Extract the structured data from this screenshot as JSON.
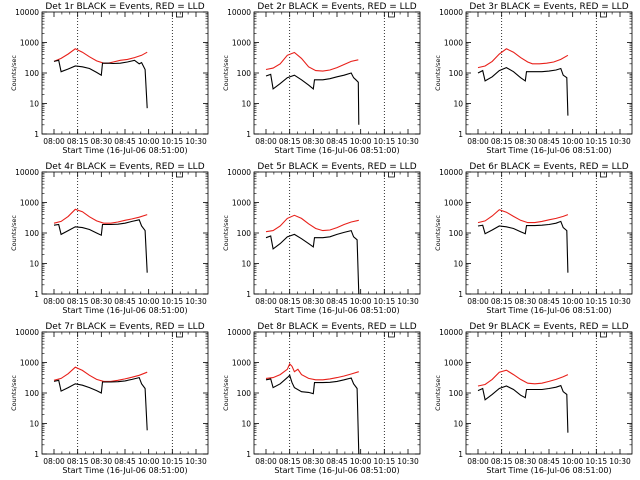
{
  "figure": {
    "colors": {
      "events": "#000000",
      "lld": "#e8201a",
      "background": "#ffffff"
    }
  },
  "chart_data": [
    {
      "type": "line",
      "title": "Det 1r BLACK = Events, RED = LLD",
      "xlabel": "Start Time (16-Jul-06 08:51:00)",
      "ylabel": "Counts/sec",
      "xticks": [
        "08:00",
        "08:15",
        "08:30",
        "08:45",
        "10:00",
        "10:15",
        "10:30"
      ],
      "yticks": [
        "1",
        "10",
        "100",
        "1000",
        "10000"
      ],
      "yscale": "log",
      "ylim": [
        1,
        10000
      ],
      "vlines": [
        1,
        5
      ],
      "marker_at": 5.3,
      "series": [
        {
          "name": "RED = LLD",
          "x": [
            0,
            0.3,
            0.6,
            0.9,
            1.2,
            1.5,
            1.8,
            2.1,
            2.3,
            2.5,
            2.8,
            3.1,
            3.4,
            3.7,
            3.94
          ],
          "y": [
            240,
            300,
            420,
            620,
            480,
            340,
            250,
            210,
            210,
            230,
            260,
            280,
            320,
            380,
            480
          ]
        },
        {
          "name": "BLACK = Events",
          "x": [
            0,
            0.2,
            0.3,
            0.6,
            0.9,
            1.2,
            1.5,
            1.8,
            2.0,
            2.05,
            2.3,
            2.5,
            2.8,
            3.1,
            3.4,
            3.6,
            3.7,
            3.85,
            3.94
          ],
          "y": [
            240,
            260,
            110,
            135,
            170,
            160,
            140,
            105,
            85,
            210,
            210,
            205,
            210,
            230,
            260,
            200,
            220,
            130,
            7
          ]
        }
      ]
    },
    {
      "type": "line",
      "title": "Det 2r BLACK = Events, RED = LLD",
      "xlabel": "Start Time (16-Jul-06 08:51:00)",
      "ylabel": "Counts/sec",
      "xticks": [
        "08:00",
        "08:15",
        "08:30",
        "08:45",
        "10:00",
        "10:15",
        "10:30"
      ],
      "yticks": [
        "1",
        "10",
        "100",
        "1000",
        "10000"
      ],
      "yscale": "log",
      "ylim": [
        1,
        10000
      ],
      "vlines": [
        1,
        5
      ],
      "marker_at": 5.3,
      "series": [
        {
          "name": "RED = LLD",
          "x": [
            0,
            0.3,
            0.6,
            0.9,
            1.2,
            1.5,
            1.8,
            2.1,
            2.4,
            2.7,
            3.0,
            3.3,
            3.6,
            3.9
          ],
          "y": [
            130,
            145,
            200,
            380,
            470,
            300,
            160,
            120,
            115,
            125,
            150,
            190,
            240,
            270
          ]
        },
        {
          "name": "BLACK = Events",
          "x": [
            0,
            0.2,
            0.3,
            0.6,
            0.9,
            1.2,
            1.5,
            1.8,
            2.0,
            2.05,
            2.4,
            2.7,
            3.0,
            3.3,
            3.6,
            3.7,
            3.8,
            3.9,
            3.92
          ],
          "y": [
            80,
            90,
            30,
            45,
            70,
            85,
            60,
            40,
            30,
            60,
            60,
            65,
            75,
            85,
            100,
            70,
            60,
            50,
            2
          ]
        }
      ]
    },
    {
      "type": "line",
      "title": "Det 3r BLACK = Events, RED = LLD",
      "xlabel": "Start Time (16-Jul-06 08:51:00)",
      "ylabel": "Counts/sec",
      "xticks": [
        "08:00",
        "08:15",
        "08:30",
        "08:45",
        "10:00",
        "10:15",
        "10:30"
      ],
      "yticks": [
        "1",
        "10",
        "100",
        "1000",
        "10000"
      ],
      "yscale": "log",
      "ylim": [
        1,
        10000
      ],
      "vlines": [
        1,
        5
      ],
      "marker_at": 5.3,
      "series": [
        {
          "name": "RED = LLD",
          "x": [
            0,
            0.3,
            0.6,
            0.9,
            1.2,
            1.5,
            1.8,
            2.1,
            2.3,
            2.6,
            2.9,
            3.2,
            3.5,
            3.8
          ],
          "y": [
            150,
            170,
            240,
            420,
            620,
            480,
            320,
            230,
            200,
            200,
            210,
            230,
            280,
            380
          ]
        },
        {
          "name": "BLACK = Events",
          "x": [
            0,
            0.2,
            0.3,
            0.6,
            0.9,
            1.2,
            1.5,
            1.8,
            2.0,
            2.05,
            2.4,
            2.7,
            3.0,
            3.3,
            3.5,
            3.6,
            3.75,
            3.8
          ],
          "y": [
            100,
            120,
            55,
            75,
            120,
            150,
            110,
            70,
            55,
            110,
            110,
            110,
            115,
            125,
            140,
            85,
            70,
            4
          ]
        }
      ]
    },
    {
      "type": "line",
      "title": "Det 4r BLACK = Events, RED = LLD",
      "xlabel": "Start Time (16-Jul-06 08:51:00)",
      "ylabel": "Counts/sec",
      "xticks": [
        "08:00",
        "08:15",
        "08:30",
        "08:45",
        "10:00",
        "10:15",
        "10:30"
      ],
      "yticks": [
        "1",
        "10",
        "100",
        "1000",
        "10000"
      ],
      "yscale": "log",
      "ylim": [
        1,
        10000
      ],
      "vlines": [
        1,
        5
      ],
      "marker_at": 5.3,
      "series": [
        {
          "name": "RED = LLD",
          "x": [
            0,
            0.3,
            0.6,
            0.9,
            1.2,
            1.5,
            1.8,
            2.1,
            2.4,
            2.7,
            3.0,
            3.3,
            3.6,
            3.94
          ],
          "y": [
            210,
            240,
            350,
            600,
            500,
            340,
            250,
            210,
            210,
            230,
            260,
            290,
            330,
            400
          ]
        },
        {
          "name": "BLACK = Events",
          "x": [
            0,
            0.2,
            0.3,
            0.6,
            0.9,
            1.2,
            1.5,
            1.8,
            2.0,
            2.05,
            2.4,
            2.7,
            3.0,
            3.3,
            3.6,
            3.7,
            3.85,
            3.94
          ],
          "y": [
            180,
            190,
            90,
            120,
            160,
            150,
            130,
            100,
            85,
            190,
            190,
            195,
            210,
            240,
            270,
            170,
            120,
            5
          ]
        }
      ]
    },
    {
      "type": "line",
      "title": "Det 5r BLACK = Events, RED = LLD",
      "xlabel": "Start Time (16-Jul-06 08:51:00)",
      "ylabel": "Counts/sec",
      "xticks": [
        "08:00",
        "08:15",
        "08:30",
        "08:45",
        "10:00",
        "10:15",
        "10:30"
      ],
      "yticks": [
        "1",
        "10",
        "100",
        "1000",
        "10000"
      ],
      "yscale": "log",
      "ylim": [
        1,
        10000
      ],
      "vlines": [
        1,
        5
      ],
      "marker_at": 5.3,
      "series": [
        {
          "name": "RED = LLD",
          "x": [
            0,
            0.3,
            0.6,
            0.9,
            1.2,
            1.5,
            1.8,
            2.1,
            2.4,
            2.7,
            3.0,
            3.3,
            3.6,
            3.92
          ],
          "y": [
            110,
            120,
            170,
            300,
            380,
            300,
            200,
            140,
            120,
            125,
            150,
            190,
            230,
            260
          ]
        },
        {
          "name": "BLACK = Events",
          "x": [
            0,
            0.2,
            0.3,
            0.6,
            0.9,
            1.2,
            1.5,
            1.8,
            2.0,
            2.05,
            2.4,
            2.7,
            3.0,
            3.3,
            3.6,
            3.7,
            3.85,
            3.92
          ],
          "y": [
            70,
            80,
            30,
            45,
            75,
            90,
            65,
            45,
            35,
            70,
            70,
            75,
            90,
            105,
            120,
            75,
            60,
            1
          ]
        }
      ]
    },
    {
      "type": "line",
      "title": "Det 6r BLACK = Events, RED = LLD",
      "xlabel": "Start Time (16-Jul-06 08:51:00)",
      "ylabel": "Counts/sec",
      "xticks": [
        "08:00",
        "08:15",
        "08:30",
        "08:45",
        "10:00",
        "10:15",
        "10:30"
      ],
      "yticks": [
        "1",
        "10",
        "100",
        "1000",
        "10000"
      ],
      "yscale": "log",
      "ylim": [
        1,
        10000
      ],
      "vlines": [
        1,
        5
      ],
      "marker_at": 5.3,
      "series": [
        {
          "name": "RED = LLD",
          "x": [
            0,
            0.3,
            0.6,
            0.9,
            1.2,
            1.5,
            1.8,
            2.1,
            2.4,
            2.7,
            3.0,
            3.3,
            3.6,
            3.8
          ],
          "y": [
            220,
            250,
            360,
            580,
            480,
            350,
            260,
            220,
            220,
            240,
            270,
            300,
            350,
            400
          ]
        },
        {
          "name": "BLACK = Events",
          "x": [
            0,
            0.2,
            0.3,
            0.6,
            0.9,
            1.2,
            1.5,
            1.8,
            2.0,
            2.05,
            2.4,
            2.7,
            3.0,
            3.3,
            3.5,
            3.6,
            3.75,
            3.8
          ],
          "y": [
            170,
            180,
            95,
            125,
            170,
            160,
            140,
            110,
            95,
            175,
            175,
            180,
            190,
            210,
            240,
            150,
            120,
            5
          ]
        }
      ]
    },
    {
      "type": "line",
      "title": "Det 7r BLACK = Events, RED = LLD",
      "xlabel": "Start Time (16-Jul-06 08:51:00)",
      "ylabel": "Counts/sec",
      "xticks": [
        "08:00",
        "08:15",
        "08:30",
        "08:45",
        "10:00",
        "10:15",
        "10:30"
      ],
      "yticks": [
        "1",
        "10",
        "100",
        "1000",
        "10000"
      ],
      "yscale": "log",
      "ylim": [
        1,
        10000
      ],
      "vlines": [
        1,
        5
      ],
      "marker_at": 5.3,
      "series": [
        {
          "name": "RED = LLD",
          "x": [
            0,
            0.3,
            0.6,
            0.9,
            1.2,
            1.5,
            1.8,
            2.1,
            2.4,
            2.7,
            3.0,
            3.3,
            3.6,
            3.94
          ],
          "y": [
            260,
            300,
            430,
            700,
            550,
            380,
            280,
            240,
            240,
            260,
            290,
            330,
            380,
            480
          ]
        },
        {
          "name": "BLACK = Events",
          "x": [
            0,
            0.2,
            0.3,
            0.6,
            0.9,
            1.2,
            1.5,
            1.8,
            2.0,
            2.05,
            2.4,
            2.7,
            3.0,
            3.3,
            3.6,
            3.7,
            3.85,
            3.94
          ],
          "y": [
            240,
            260,
            115,
            150,
            200,
            180,
            150,
            120,
            100,
            230,
            230,
            235,
            250,
            280,
            320,
            200,
            140,
            6
          ]
        }
      ]
    },
    {
      "type": "line",
      "title": "Det 8r BLACK = Events, RED = LLD",
      "xlabel": "Start Time (16-Jul-06 08:51:00)",
      "ylabel": "Counts/sec",
      "xticks": [
        "08:00",
        "08:15",
        "08:30",
        "08:45",
        "10:00",
        "10:15",
        "10:30"
      ],
      "yticks": [
        "1",
        "10",
        "100",
        "1000",
        "10000"
      ],
      "yscale": "log",
      "ylim": [
        1,
        10000
      ],
      "vlines": [
        1,
        5
      ],
      "marker_at": 5.3,
      "series": [
        {
          "name": "RED = LLD",
          "x": [
            0,
            0.3,
            0.6,
            0.9,
            1.0,
            1.1,
            1.2,
            1.35,
            1.5,
            1.8,
            2.1,
            2.4,
            2.7,
            3.0,
            3.3,
            3.6,
            3.92
          ],
          "y": [
            300,
            320,
            400,
            600,
            900,
            750,
            500,
            600,
            400,
            300,
            270,
            270,
            290,
            320,
            360,
            420,
            500
          ]
        },
        {
          "name": "BLACK = Events",
          "x": [
            0,
            0.2,
            0.3,
            0.6,
            0.9,
            1.0,
            1.1,
            1.2,
            1.5,
            1.8,
            2.0,
            2.05,
            2.4,
            2.7,
            3.0,
            3.3,
            3.6,
            3.7,
            3.85,
            3.92
          ],
          "y": [
            270,
            290,
            150,
            200,
            320,
            380,
            220,
            150,
            110,
            105,
            95,
            220,
            220,
            225,
            240,
            270,
            310,
            200,
            140,
            1
          ]
        }
      ]
    },
    {
      "type": "line",
      "title": "Det 9r BLACK = Events, RED = LLD",
      "xlabel": "Start Time (16-Jul-06 08:51:00)",
      "ylabel": "Counts/sec",
      "xticks": [
        "08:00",
        "08:15",
        "08:30",
        "08:45",
        "10:00",
        "10:15",
        "10:30"
      ],
      "yticks": [
        "1",
        "10",
        "100",
        "1000",
        "10000"
      ],
      "yscale": "log",
      "ylim": [
        1,
        10000
      ],
      "vlines": [
        1,
        5
      ],
      "marker_at": 5.3,
      "series": [
        {
          "name": "RED = LLD",
          "x": [
            0,
            0.3,
            0.6,
            0.9,
            1.2,
            1.5,
            1.8,
            2.1,
            2.4,
            2.7,
            3.0,
            3.3,
            3.6,
            3.8
          ],
          "y": [
            170,
            190,
            280,
            480,
            560,
            400,
            280,
            210,
            200,
            210,
            240,
            280,
            340,
            400
          ]
        },
        {
          "name": "BLACK = Events",
          "x": [
            0,
            0.2,
            0.3,
            0.6,
            0.9,
            1.2,
            1.5,
            1.8,
            2.0,
            2.05,
            2.4,
            2.7,
            3.0,
            3.3,
            3.5,
            3.6,
            3.75,
            3.8
          ],
          "y": [
            120,
            140,
            60,
            90,
            140,
            170,
            130,
            85,
            70,
            130,
            130,
            130,
            140,
            155,
            175,
            110,
            90,
            5
          ]
        }
      ]
    }
  ]
}
